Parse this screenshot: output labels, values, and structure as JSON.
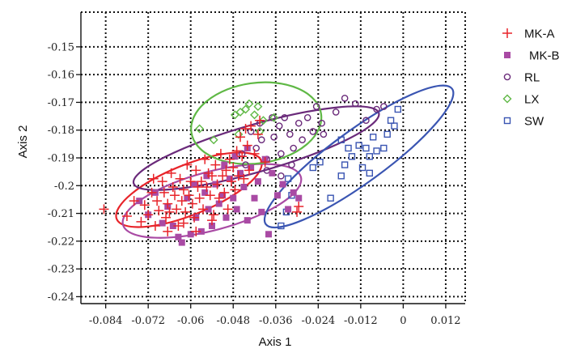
{
  "chart_data": {
    "type": "scatter",
    "title": "",
    "xlabel": "Axis 1",
    "ylabel": "Axis 2",
    "xlim": [
      -0.091,
      0.0175
    ],
    "ylim": [
      -0.2425,
      -0.1375
    ],
    "xticks": [
      -0.084,
      -0.072,
      -0.06,
      -0.048,
      -0.036,
      -0.024,
      -0.012,
      0,
      0.012
    ],
    "xtick_labels": [
      "-0.084",
      "-0.072",
      "-0.06",
      "-0.048",
      "-0.036",
      "-0.024",
      "-0.012",
      "0",
      "0.012"
    ],
    "yticks": [
      -0.15,
      -0.16,
      -0.17,
      -0.18,
      -0.19,
      -0.2,
      -0.21,
      -0.22,
      -0.23,
      -0.24
    ],
    "ytick_labels": [
      "-0.15",
      "-0.16",
      "-0.17",
      "-0.18",
      "-0.19",
      "-0.2",
      "-0.21",
      "-0.22",
      "-0.23",
      "-0.24"
    ],
    "grid": true,
    "legend_position": "right",
    "series": [
      {
        "name": "MK-A",
        "marker": "plus",
        "color": "#e8242a",
        "ellipse": {
          "cx": -0.0605,
          "cy": -0.2015,
          "rx": 0.022,
          "ry": 0.009,
          "angle_deg": -22
        },
        "points": [
          [
            -0.0845,
            -0.2085
          ],
          [
            -0.078,
            -0.211
          ],
          [
            -0.076,
            -0.2055
          ],
          [
            -0.074,
            -0.213
          ],
          [
            -0.073,
            -0.207
          ],
          [
            -0.072,
            -0.2105
          ],
          [
            -0.071,
            -0.2025
          ],
          [
            -0.07,
            -0.2145
          ],
          [
            -0.0695,
            -0.2055
          ],
          [
            -0.069,
            -0.209
          ],
          [
            -0.068,
            -0.1985
          ],
          [
            -0.0675,
            -0.2025
          ],
          [
            -0.067,
            -0.2115
          ],
          [
            -0.0665,
            -0.2065
          ],
          [
            -0.066,
            -0.2095
          ],
          [
            -0.0655,
            -0.1955
          ],
          [
            -0.065,
            -0.2005
          ],
          [
            -0.0645,
            -0.2035
          ],
          [
            -0.064,
            -0.2085
          ],
          [
            -0.0635,
            -0.2145
          ],
          [
            -0.063,
            -0.1975
          ],
          [
            -0.0625,
            -0.2055
          ],
          [
            -0.062,
            -0.2015
          ],
          [
            -0.0615,
            -0.2095
          ],
          [
            -0.061,
            -0.1925
          ],
          [
            -0.0605,
            -0.2035
          ],
          [
            -0.06,
            -0.1985
          ],
          [
            -0.0595,
            -0.2065
          ],
          [
            -0.059,
            -0.2115
          ],
          [
            -0.0585,
            -0.1945
          ],
          [
            -0.058,
            -0.2005
          ],
          [
            -0.0575,
            -0.2045
          ],
          [
            -0.057,
            -0.1985
          ],
          [
            -0.0565,
            -0.2085
          ],
          [
            -0.056,
            -0.1905
          ],
          [
            -0.0555,
            -0.2005
          ],
          [
            -0.055,
            -0.1955
          ],
          [
            -0.0545,
            -0.2035
          ],
          [
            -0.054,
            -0.1965
          ],
          [
            -0.0535,
            -0.2105
          ],
          [
            -0.053,
            -0.1925
          ],
          [
            -0.0525,
            -0.1995
          ],
          [
            -0.052,
            -0.2045
          ],
          [
            -0.0515,
            -0.1885
          ],
          [
            -0.051,
            -0.1965
          ],
          [
            -0.0505,
            -0.2025
          ],
          [
            -0.05,
            -0.1945
          ],
          [
            -0.0495,
            -0.2085
          ],
          [
            -0.049,
            -0.1905
          ],
          [
            -0.0485,
            -0.1985
          ],
          [
            -0.048,
            -0.1935
          ],
          [
            -0.0475,
            -0.2015
          ],
          [
            -0.047,
            -0.1875
          ],
          [
            -0.0465,
            -0.1965
          ],
          [
            -0.046,
            -0.1825
          ],
          [
            -0.0455,
            -0.1895
          ],
          [
            -0.045,
            -0.1975
          ],
          [
            -0.0445,
            -0.1795
          ],
          [
            -0.044,
            -0.1855
          ],
          [
            -0.0435,
            -0.1945
          ],
          [
            -0.043,
            -0.1785
          ],
          [
            -0.042,
            -0.1885
          ],
          [
            -0.041,
            -0.1815
          ],
          [
            -0.0405,
            -0.1765
          ],
          [
            -0.039,
            -0.1915
          ],
          [
            -0.03,
            -0.2095
          ],
          [
            -0.0295,
            -0.2075
          ],
          [
            -0.0665,
            -0.2165
          ],
          [
            -0.062,
            -0.2135
          ],
          [
            -0.0585,
            -0.2165
          ],
          [
            -0.054,
            -0.2125
          ],
          [
            -0.0705,
            -0.1975
          ]
        ]
      },
      {
        "name": "MK-B",
        "marker": "square-filled",
        "color": "#a94aa4",
        "ellipse": {
          "cx": -0.054,
          "cy": -0.2055,
          "rx": 0.026,
          "ry": 0.0105,
          "angle_deg": -15
        },
        "points": [
          [
            -0.0745,
            -0.2055
          ],
          [
            -0.072,
            -0.2105
          ],
          [
            -0.07,
            -0.2025
          ],
          [
            -0.068,
            -0.2135
          ],
          [
            -0.0665,
            -0.2075
          ],
          [
            -0.065,
            -0.2145
          ],
          [
            -0.0635,
            -0.2185
          ],
          [
            -0.0625,
            -0.2205
          ],
          [
            -0.061,
            -0.2045
          ],
          [
            -0.06,
            -0.2175
          ],
          [
            -0.0585,
            -0.2115
          ],
          [
            -0.057,
            -0.2165
          ],
          [
            -0.056,
            -0.2025
          ],
          [
            -0.055,
            -0.2085
          ],
          [
            -0.054,
            -0.2145
          ],
          [
            -0.053,
            -0.1995
          ],
          [
            -0.052,
            -0.2065
          ],
          [
            -0.051,
            -0.2035
          ],
          [
            -0.05,
            -0.2115
          ],
          [
            -0.049,
            -0.1975
          ],
          [
            -0.048,
            -0.2045
          ],
          [
            -0.047,
            -0.2085
          ],
          [
            -0.046,
            -0.1955
          ],
          [
            -0.045,
            -0.2005
          ],
          [
            -0.044,
            -0.2125
          ],
          [
            -0.043,
            -0.1935
          ],
          [
            -0.042,
            -0.2045
          ],
          [
            -0.041,
            -0.1985
          ],
          [
            -0.04,
            -0.2095
          ],
          [
            -0.039,
            -0.1905
          ],
          [
            -0.038,
            -0.2175
          ],
          [
            -0.037,
            -0.1955
          ],
          [
            -0.0355,
            -0.2035
          ],
          [
            -0.034,
            -0.1995
          ],
          [
            -0.0325,
            -0.2085
          ],
          [
            -0.031,
            -0.2025
          ],
          [
            -0.0295,
            -0.2045
          ],
          [
            -0.059,
            -0.1995
          ],
          [
            -0.0555,
            -0.1965
          ],
          [
            -0.0505,
            -0.1925
          ],
          [
            -0.0475,
            -0.1895
          ],
          [
            -0.044,
            -0.1865
          ]
        ]
      },
      {
        "name": "RL",
        "marker": "circle-open",
        "color": "#6a2a7a",
        "ellipse": {
          "cx": -0.0415,
          "cy": -0.1865,
          "rx": 0.036,
          "ry": 0.0085,
          "angle_deg": -16
        },
        "points": [
          [
            -0.0455,
            -0.1885
          ],
          [
            -0.0445,
            -0.1925
          ],
          [
            -0.043,
            -0.1805
          ],
          [
            -0.0415,
            -0.1865
          ],
          [
            -0.0405,
            -0.1775
          ],
          [
            -0.04,
            -0.1835
          ],
          [
            -0.0385,
            -0.1905
          ],
          [
            -0.037,
            -0.1755
          ],
          [
            -0.0365,
            -0.1825
          ],
          [
            -0.035,
            -0.1785
          ],
          [
            -0.0345,
            -0.1885
          ],
          [
            -0.0335,
            -0.1755
          ],
          [
            -0.032,
            -0.1815
          ],
          [
            -0.031,
            -0.1865
          ],
          [
            -0.0295,
            -0.1775
          ],
          [
            -0.0285,
            -0.1835
          ],
          [
            -0.027,
            -0.1755
          ],
          [
            -0.0255,
            -0.1805
          ],
          [
            -0.0245,
            -0.1715
          ],
          [
            -0.023,
            -0.1775
          ],
          [
            -0.0225,
            -0.1815
          ],
          [
            -0.019,
            -0.1735
          ],
          [
            -0.0165,
            -0.1685
          ],
          [
            -0.0135,
            -0.1705
          ],
          [
            -0.0105,
            -0.1765
          ],
          [
            -0.0075,
            -0.1725
          ],
          [
            -0.0055,
            -0.1715
          ],
          [
            -0.0385,
            -0.1945
          ],
          [
            -0.0345,
            -0.1965
          ],
          [
            -0.0315,
            -0.1925
          ]
        ]
      },
      {
        "name": "LX",
        "marker": "diamond-open",
        "color": "#5fb845",
        "ellipse": {
          "cx": -0.0415,
          "cy": -0.1775,
          "rx": 0.0185,
          "ry": 0.0145,
          "angle_deg": -8
        },
        "points": [
          [
            -0.0575,
            -0.1795
          ],
          [
            -0.0475,
            -0.1745
          ],
          [
            -0.046,
            -0.1735
          ],
          [
            -0.0445,
            -0.1725
          ],
          [
            -0.0435,
            -0.1705
          ],
          [
            -0.042,
            -0.1745
          ],
          [
            -0.041,
            -0.1715
          ],
          [
            -0.0395,
            -0.1765
          ],
          [
            -0.0405,
            -0.1805
          ],
          [
            -0.0365,
            -0.1755
          ],
          [
            -0.0535,
            -0.1835
          ],
          [
            -0.0465,
            -0.1815
          ]
        ]
      },
      {
        "name": "SW",
        "marker": "square-open",
        "color": "#3a55b2",
        "ellipse": {
          "cx": -0.0125,
          "cy": -0.1895,
          "rx": 0.0325,
          "ry": 0.0095,
          "angle_deg": -36
        },
        "points": [
          [
            -0.0345,
            -0.2145
          ],
          [
            -0.033,
            -0.2095
          ],
          [
            -0.0315,
            -0.2035
          ],
          [
            -0.0255,
            -0.1935
          ],
          [
            -0.0235,
            -0.1915
          ],
          [
            -0.0205,
            -0.2045
          ],
          [
            -0.0175,
            -0.1835
          ],
          [
            -0.0165,
            -0.1925
          ],
          [
            -0.0155,
            -0.1865
          ],
          [
            -0.0145,
            -0.1895
          ],
          [
            -0.0125,
            -0.1855
          ],
          [
            -0.0115,
            -0.1935
          ],
          [
            -0.0105,
            -0.1865
          ],
          [
            -0.0095,
            -0.1895
          ],
          [
            -0.0085,
            -0.1825
          ],
          [
            -0.0075,
            -0.1875
          ],
          [
            -0.0055,
            -0.1865
          ],
          [
            -0.0045,
            -0.1815
          ],
          [
            -0.0035,
            -0.1765
          ],
          [
            -0.0025,
            -0.1785
          ],
          [
            -0.0015,
            -0.1725
          ],
          [
            -0.0325,
            -0.1975
          ],
          [
            -0.0175,
            -0.1965
          ],
          [
            -0.0095,
            -0.1955
          ]
        ]
      }
    ]
  }
}
